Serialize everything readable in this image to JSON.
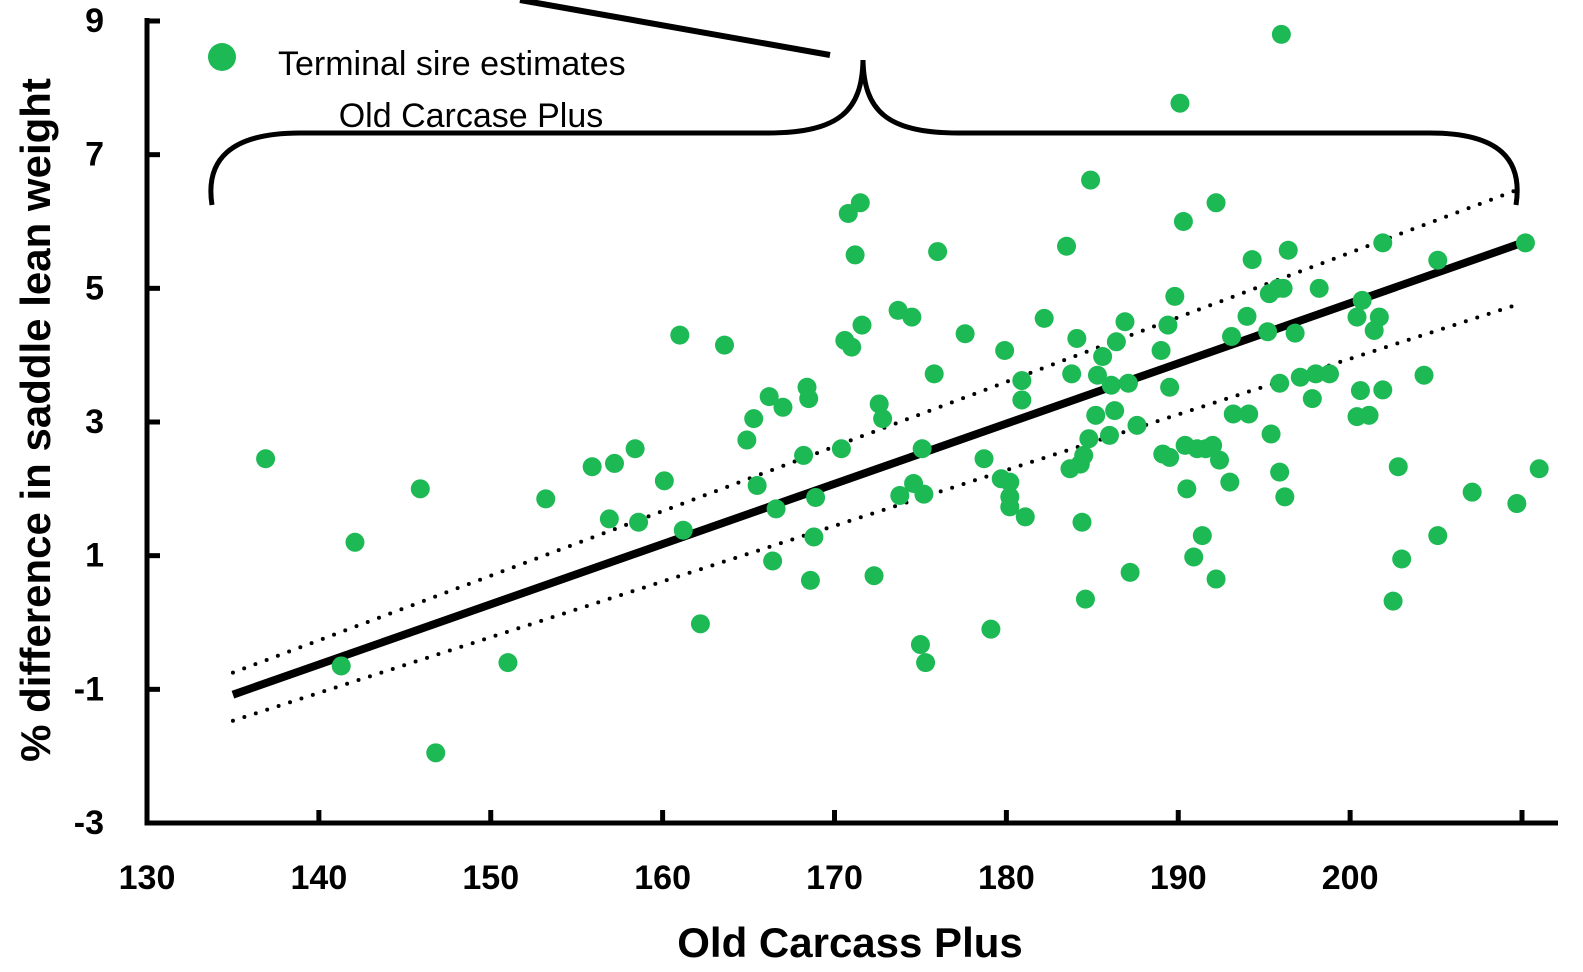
{
  "chart_data": {
    "type": "scatter",
    "xlabel": "Old Carcass Plus",
    "ylabel": "% difference in saddle lean weight",
    "xlim": [
      130,
      210
    ],
    "ylim": [
      -3,
      9
    ],
    "x_ticks": [
      "130",
      "140",
      "150",
      "160",
      "170",
      "180",
      "190",
      "200"
    ],
    "y_ticks": [
      "-3",
      "-1",
      "1",
      "3",
      "5",
      "7",
      "9"
    ],
    "legend_position": "top-left",
    "grid": false,
    "colors": {
      "points": "#1db954",
      "lines": "#000000"
    },
    "series": [
      {
        "name": "Terminal sire estimates",
        "points": [
          [
            136.9,
            2.45
          ],
          [
            141.3,
            -0.65
          ],
          [
            142.1,
            1.2
          ],
          [
            145.9,
            2.0
          ],
          [
            146.8,
            -1.95
          ],
          [
            151.0,
            -0.6
          ],
          [
            153.2,
            1.85
          ],
          [
            155.9,
            2.33
          ],
          [
            156.9,
            1.55
          ],
          [
            157.2,
            2.38
          ],
          [
            158.4,
            2.6
          ],
          [
            158.6,
            1.5
          ],
          [
            160.1,
            2.12
          ],
          [
            161.0,
            4.3
          ],
          [
            161.2,
            1.38
          ],
          [
            162.2,
            -0.02
          ],
          [
            163.6,
            4.15
          ],
          [
            164.9,
            2.73
          ],
          [
            165.3,
            3.05
          ],
          [
            165.5,
            2.05
          ],
          [
            166.2,
            3.38
          ],
          [
            166.4,
            0.92
          ],
          [
            166.6,
            1.7
          ],
          [
            167.0,
            3.22
          ],
          [
            168.2,
            2.5
          ],
          [
            168.4,
            3.52
          ],
          [
            168.5,
            3.35
          ],
          [
            168.6,
            0.63
          ],
          [
            168.8,
            1.28
          ],
          [
            168.9,
            1.87
          ],
          [
            170.4,
            2.6
          ],
          [
            170.6,
            4.22
          ],
          [
            170.8,
            6.12
          ],
          [
            171.0,
            4.12
          ],
          [
            171.2,
            5.5
          ],
          [
            171.5,
            6.28
          ],
          [
            171.6,
            4.45
          ],
          [
            172.3,
            0.7
          ],
          [
            172.6,
            3.27
          ],
          [
            172.8,
            3.05
          ],
          [
            173.7,
            4.67
          ],
          [
            173.8,
            1.9
          ],
          [
            174.5,
            4.57
          ],
          [
            174.6,
            2.08
          ],
          [
            175.0,
            -0.33
          ],
          [
            175.1,
            2.6
          ],
          [
            175.2,
            1.92
          ],
          [
            175.3,
            -0.6
          ],
          [
            175.8,
            3.72
          ],
          [
            176.0,
            5.55
          ],
          [
            177.6,
            4.32
          ],
          [
            178.7,
            2.45
          ],
          [
            179.1,
            -0.1
          ],
          [
            179.7,
            2.15
          ],
          [
            179.9,
            4.07
          ],
          [
            180.2,
            1.73
          ],
          [
            180.2,
            1.88
          ],
          [
            180.2,
            2.1
          ],
          [
            180.9,
            3.62
          ],
          [
            180.9,
            3.33
          ],
          [
            181.1,
            1.58
          ],
          [
            182.2,
            4.55
          ],
          [
            183.5,
            5.63
          ],
          [
            183.7,
            2.3
          ],
          [
            183.8,
            3.72
          ],
          [
            184.1,
            4.25
          ],
          [
            184.3,
            2.37
          ],
          [
            184.4,
            1.5
          ],
          [
            184.5,
            2.5
          ],
          [
            184.6,
            0.35
          ],
          [
            184.8,
            2.75
          ],
          [
            184.9,
            6.62
          ],
          [
            185.2,
            3.1
          ],
          [
            185.3,
            3.7
          ],
          [
            185.6,
            3.98
          ],
          [
            186.0,
            2.8
          ],
          [
            186.1,
            3.55
          ],
          [
            186.3,
            3.17
          ],
          [
            186.4,
            4.2
          ],
          [
            186.9,
            4.5
          ],
          [
            187.1,
            3.58
          ],
          [
            187.2,
            0.75
          ],
          [
            187.6,
            2.95
          ],
          [
            189.0,
            4.07
          ],
          [
            189.1,
            2.52
          ],
          [
            189.4,
            4.45
          ],
          [
            189.5,
            2.47
          ],
          [
            189.5,
            3.52
          ],
          [
            189.8,
            4.88
          ],
          [
            190.1,
            7.77
          ],
          [
            190.3,
            6.0
          ],
          [
            190.4,
            2.65
          ],
          [
            190.5,
            2.0
          ],
          [
            190.9,
            0.98
          ],
          [
            191.1,
            2.6
          ],
          [
            191.4,
            1.3
          ],
          [
            191.6,
            2.6
          ],
          [
            192.0,
            2.65
          ],
          [
            192.2,
            6.28
          ],
          [
            192.2,
            0.65
          ],
          [
            192.4,
            2.43
          ],
          [
            193.0,
            2.1
          ],
          [
            193.1,
            4.28
          ],
          [
            193.2,
            3.12
          ],
          [
            194.0,
            4.58
          ],
          [
            194.1,
            3.12
          ],
          [
            194.3,
            5.43
          ],
          [
            195.2,
            4.35
          ],
          [
            195.3,
            4.92
          ],
          [
            195.4,
            2.82
          ],
          [
            195.8,
            5.0
          ],
          [
            195.9,
            2.25
          ],
          [
            195.9,
            3.58
          ],
          [
            196.0,
            8.8
          ],
          [
            196.1,
            5.0
          ],
          [
            196.2,
            1.88
          ],
          [
            196.4,
            5.57
          ],
          [
            196.8,
            4.33
          ],
          [
            197.1,
            3.67
          ],
          [
            197.8,
            3.35
          ],
          [
            198.0,
            3.72
          ],
          [
            198.2,
            5.0
          ],
          [
            198.8,
            3.72
          ],
          [
            200.4,
            4.57
          ],
          [
            200.4,
            3.08
          ],
          [
            200.6,
            3.47
          ],
          [
            200.7,
            4.82
          ],
          [
            201.1,
            3.1
          ],
          [
            201.4,
            4.37
          ],
          [
            201.7,
            4.57
          ],
          [
            201.9,
            5.68
          ],
          [
            201.9,
            3.48
          ],
          [
            202.5,
            0.32
          ],
          [
            202.8,
            2.33
          ],
          [
            203.0,
            0.95
          ],
          [
            204.3,
            3.7
          ],
          [
            205.1,
            1.3
          ],
          [
            205.1,
            5.42
          ],
          [
            207.1,
            1.95
          ],
          [
            209.7,
            1.78
          ],
          [
            210.2,
            5.68
          ],
          [
            211.0,
            2.3
          ]
        ]
      }
    ],
    "lines": [
      {
        "style": "solid",
        "x": [
          135,
          210
        ],
        "y": [
          -1.08,
          5.68
        ]
      },
      {
        "style": "dotted",
        "x": [
          135,
          210
        ],
        "y": [
          -0.75,
          6.5
        ]
      },
      {
        "style": "dotted",
        "x": [
          135,
          210
        ],
        "y": [
          -1.47,
          4.78
        ]
      }
    ],
    "annotation": {
      "label_line1": "Terminal sire estimates",
      "label_line2": "Old Carcase Plus",
      "brace_x": [
        133.8,
        209.7
      ]
    }
  }
}
